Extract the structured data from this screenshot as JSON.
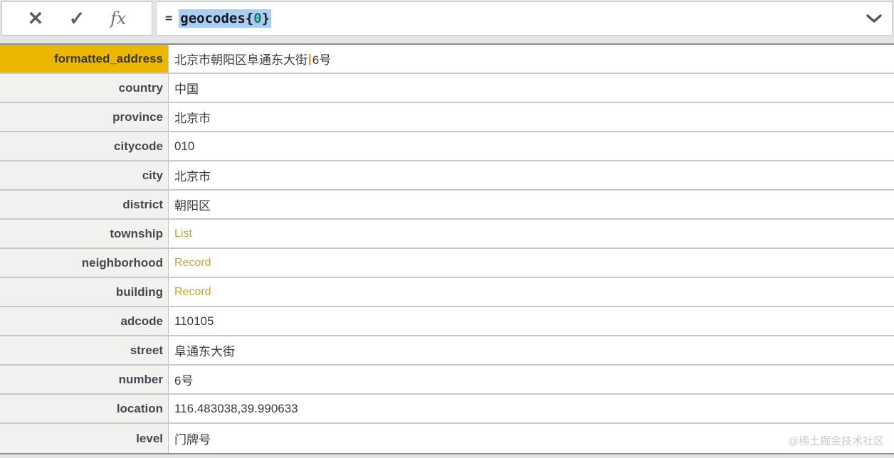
{
  "formula_bar": {
    "cancel_label": "✕",
    "confirm_label": "✓",
    "fx_label": "fx",
    "equals_sign": "=",
    "expression": {
      "identifier": "geocodes",
      "open_brace": "{",
      "index": "0",
      "close_brace": "}"
    }
  },
  "record": {
    "rows": [
      {
        "label": "formatted_address",
        "selected": true,
        "parts": [
          {
            "text": "北京市朝阳区阜通东大街",
            "kind": "text"
          },
          {
            "text": "|",
            "kind": "pipe"
          },
          {
            "text": "6号",
            "kind": "text"
          }
        ]
      },
      {
        "label": "country",
        "value": "中国"
      },
      {
        "label": "province",
        "value": "北京市"
      },
      {
        "label": "citycode",
        "value": "010"
      },
      {
        "label": "city",
        "value": "北京市"
      },
      {
        "label": "district",
        "value": "朝阳区"
      },
      {
        "label": "township",
        "value": "List",
        "kind": "link"
      },
      {
        "label": "neighborhood",
        "value": "Record",
        "kind": "link"
      },
      {
        "label": "building",
        "value": "Record",
        "kind": "link"
      },
      {
        "label": "adcode",
        "value": "110105"
      },
      {
        "label": "street",
        "value": "阜通东大街"
      },
      {
        "label": "number",
        "value": "6号"
      },
      {
        "label": "location",
        "value": "116.483038,39.990633"
      },
      {
        "label": "level",
        "value": "门牌号"
      }
    ]
  },
  "watermark": "@稀土掘金技术社区",
  "colors": {
    "selected_field_gold": "#EBB700",
    "link_gold": "#C7A13C",
    "pipe_gold": "#CB9E21",
    "selection_blue": "#A9CEF3",
    "index_green": "#0E7D62"
  }
}
